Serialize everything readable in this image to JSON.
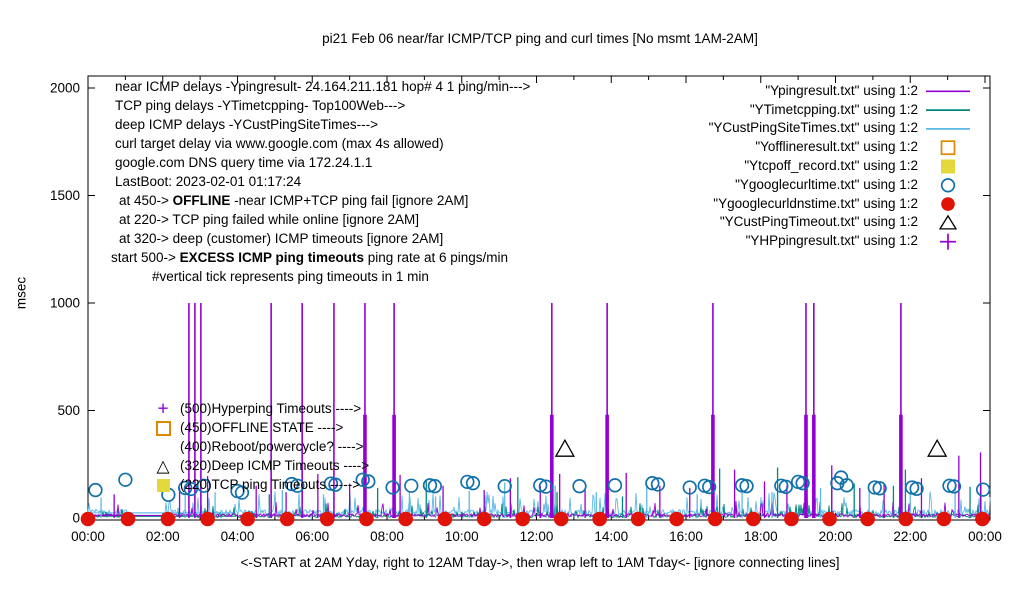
{
  "title": "pi21 Feb 06  near/far ICMP/TCP ping and curl times [No msmt 1AM-2AM]",
  "y_axis": {
    "label": "msec",
    "ticks": [
      0,
      500,
      1000,
      1500,
      2000
    ]
  },
  "x_axis": {
    "caption": "<-START at 2AM Yday, right to 12AM Tday->, then wrap left to 1AM Tday<- [ignore connecting lines]",
    "tick_labels": [
      "00:00",
      "02:00",
      "04:00",
      "06:00",
      "08:00",
      "10:00",
      "12:00",
      "14:00",
      "16:00",
      "18:00",
      "20:00",
      "22:00",
      "00:00"
    ]
  },
  "info_block": {
    "lines": [
      {
        "pre": "near ICMP delays -Ypingresult- 24.164.211.181 hop# 4 1 ping/min--->",
        "bold": "",
        "post": ""
      },
      {
        "pre": "TCP ping delays -YTimetcpping- Top100Web--->",
        "bold": "",
        "post": ""
      },
      {
        "pre": "deep ICMP delays -YCustPingSiteTimes--->",
        "bold": "",
        "post": ""
      },
      {
        "pre": "curl target delay via www.google.com (max 4s allowed)",
        "bold": "",
        "post": ""
      },
      {
        "pre": "google.com DNS query time via 172.24.1.1",
        "bold": "",
        "post": ""
      },
      {
        "pre": "LastBoot: 2023-02-01 01:17:24",
        "bold": "",
        "post": ""
      },
      {
        "pre": "at 450->  ",
        "bold": "OFFLINE",
        "post": "  -near ICMP+TCP ping fail [ignore 2AM]"
      },
      {
        "pre": "at 220-> TCP ping failed while online [ignore 2AM]",
        "bold": "",
        "post": ""
      },
      {
        "pre": "at 320-> deep (customer) ICMP timeouts [ignore 2AM]",
        "bold": "",
        "post": ""
      },
      {
        "pre": "start 500->  ",
        "bold": "EXCESS ICMP ping timeouts",
        "post": "  ping rate at 6 pings/min"
      },
      {
        "pre": "#vertical tick represents ping timeouts in 1 min",
        "bold": "",
        "post": ""
      }
    ]
  },
  "annotations": [
    {
      "text": "(500)Hyperping Timeouts ---->",
      "icon": "plus",
      "color": "#9400d3"
    },
    {
      "text": "(450)OFFLINE STATE ---->",
      "icon": "square-open",
      "color": "#e08700"
    },
    {
      "text": "(400)Reboot/powercycle? ---->",
      "icon": "none",
      "color": ""
    },
    {
      "text": "(320)Deep ICMP Timeouts ---->",
      "icon": "triangle-open",
      "color": "#000000"
    },
    {
      "text": "(220)TCP ping Timeouts ----->",
      "icon": "square-filled",
      "color": "#e3d93d"
    }
  ],
  "legend": {
    "entries": [
      {
        "label": "\"Ypingresult.txt\" using 1:2",
        "marker": "line",
        "color": "#9400d3"
      },
      {
        "label": "\"YTimetcpping.txt\" using 1:2",
        "marker": "line",
        "color": "#00887a"
      },
      {
        "label": "\"YCustPingSiteTimes.txt\" using 1:2",
        "marker": "line",
        "color": "#5cb8e6"
      },
      {
        "label": "\"Yofflineresult.txt\" using 1:2",
        "marker": "square-open",
        "color": "#e08700"
      },
      {
        "label": "\"Ytcpoff_record.txt\" using 1:2",
        "marker": "square-filled",
        "color": "#e3d93d"
      },
      {
        "label": "\"Ygooglecurltime.txt\" using 1:2",
        "marker": "circle-open",
        "color": "#1170aa"
      },
      {
        "label": "\"Ygooglecurldnstime.txt\" using 1:2",
        "marker": "circle-filled",
        "color": "#e01309"
      },
      {
        "label": "\"YCustPingTimeout.txt\" using 1:2",
        "marker": "triangle-open",
        "color": "#000000"
      },
      {
        "label": "\"YHPpingresult.txt\" using 1:2",
        "marker": "plus",
        "color": "#9400d3"
      }
    ]
  },
  "chart_data": {
    "type": "line",
    "title": "pi21 Feb 06  near/far ICMP/TCP ping and curl times [No msmt 1AM-2AM]",
    "xlabel": "<-START at 2AM Yday, right to 12AM Tday->, then wrap left to 1AM Tday<- [ignore connecting lines]",
    "ylabel": "msec",
    "ylim": [
      0,
      2070
    ],
    "xlim_hours": [
      0,
      24.15
    ],
    "x_tick_hours": [
      0,
      2,
      4,
      6,
      8,
      10,
      12,
      14,
      16,
      18,
      20,
      22,
      24
    ],
    "y_ticks": [
      0,
      500,
      1000,
      1500,
      2000
    ],
    "grid": false,
    "legend_position": "top-right",
    "no_measurement_gap_hours": [
      1.03,
      2.07
    ],
    "series": [
      {
        "name": "Ypingresult",
        "color": "#9400d3",
        "style": "line",
        "noise": {
          "base": 6,
          "jitter": 14,
          "spike_prob": 0.05,
          "spike_amp": 70,
          "gap_flat": 12,
          "seed": 11
        },
        "flat_connector": {
          "from_hour": 0,
          "to_hour": 1.95,
          "msec": 12
        },
        "timeout_spike_msec": 1000,
        "timeout_spike_hours": [
          2.7,
          2.86,
          3.02,
          4.9,
          5.73,
          6.58,
          7.41,
          8.19,
          12.41,
          13.89,
          16.72,
          19.21,
          19.42,
          21.75
        ],
        "medium_spikes": [
          [
            0.7,
            110
          ],
          [
            2.45,
            140
          ],
          [
            3.2,
            195
          ],
          [
            4.5,
            150
          ],
          [
            5.3,
            120
          ],
          [
            6.15,
            205
          ],
          [
            7.0,
            160
          ],
          [
            8.35,
            200
          ],
          [
            9.5,
            150
          ],
          [
            10.6,
            130
          ],
          [
            11.3,
            185
          ],
          [
            12.1,
            150
          ],
          [
            12.62,
            205
          ],
          [
            13.3,
            130
          ],
          [
            14.4,
            210
          ],
          [
            15.3,
            150
          ],
          [
            16.1,
            140
          ],
          [
            17.3,
            225
          ],
          [
            18.1,
            170
          ],
          [
            18.7,
            150
          ],
          [
            19.9,
            245
          ],
          [
            20.65,
            140
          ],
          [
            21.3,
            160
          ],
          [
            22.3,
            185
          ],
          [
            23.3,
            290
          ],
          [
            23.88,
            305
          ]
        ]
      },
      {
        "name": "YTimetcpping",
        "color": "#00887a",
        "style": "line",
        "noise": {
          "base": 2,
          "jitter": 16,
          "spike_prob": 0.1,
          "spike_amp": 60,
          "gap_flat": 8,
          "seed": 22
        },
        "flat_connector": {
          "from_hour": 0,
          "to_hour": 3.95,
          "msec": 8
        },
        "spikes": [
          [
            4.85,
            110
          ],
          [
            7.75,
            140
          ],
          [
            9.05,
            175
          ],
          [
            11.5,
            190
          ],
          [
            12.55,
            120
          ],
          [
            14.3,
            100
          ],
          [
            16.9,
            230
          ],
          [
            18.45,
            235
          ],
          [
            19.9,
            170
          ],
          [
            20.5,
            160
          ],
          [
            21.55,
            150
          ],
          [
            21.87,
            225
          ],
          [
            23.6,
            145
          ]
        ]
      },
      {
        "name": "YCustPingSiteTimes",
        "color": "#5cb8e6",
        "style": "line",
        "noise": {
          "base": 12,
          "jitter": 26,
          "spike_prob": 0.12,
          "spike_amp": 90,
          "gap_flat": 24,
          "seed": 33
        },
        "flat_connector": {
          "from_hour": 0,
          "to_hour": 3.85,
          "msec": 24
        },
        "spikes": [
          [
            0.35,
            95
          ],
          [
            2.6,
            110
          ],
          [
            3.4,
            120
          ],
          [
            5.2,
            130
          ],
          [
            6.3,
            110
          ],
          [
            8.6,
            120
          ],
          [
            9.3,
            100
          ],
          [
            10.2,
            125
          ],
          [
            11.15,
            165
          ],
          [
            12.5,
            150
          ],
          [
            13.6,
            120
          ],
          [
            14.95,
            160
          ],
          [
            16.3,
            110
          ],
          [
            17.5,
            130
          ],
          [
            18.3,
            120
          ],
          [
            19.6,
            140
          ],
          [
            20.9,
            130
          ],
          [
            22.0,
            120
          ],
          [
            23.2,
            150
          ],
          [
            23.9,
            160
          ]
        ]
      },
      {
        "name": "Yofflineresult",
        "color": "#e08700",
        "style": "square-open",
        "points": []
      },
      {
        "name": "Ytcpoff_record",
        "color": "#e3d93d",
        "style": "square-filled",
        "points": []
      },
      {
        "name": "Ygooglecurltime",
        "color": "#1170aa",
        "style": "circle-open",
        "points": [
          [
            0.2,
            130
          ],
          [
            1.0,
            178
          ],
          [
            2.15,
            108
          ],
          [
            2.6,
            140
          ],
          [
            2.75,
            135
          ],
          [
            3.1,
            150
          ],
          [
            4.0,
            125
          ],
          [
            4.12,
            118
          ],
          [
            5.45,
            158
          ],
          [
            5.6,
            150
          ],
          [
            6.5,
            160
          ],
          [
            6.62,
            155
          ],
          [
            7.35,
            178
          ],
          [
            7.5,
            170
          ],
          [
            8.15,
            142
          ],
          [
            8.65,
            150
          ],
          [
            9.15,
            152
          ],
          [
            9.28,
            148
          ],
          [
            10.15,
            168
          ],
          [
            10.3,
            162
          ],
          [
            11.15,
            148
          ],
          [
            12.1,
            152
          ],
          [
            12.25,
            146
          ],
          [
            13.15,
            148
          ],
          [
            14.1,
            152
          ],
          [
            15.1,
            162
          ],
          [
            15.25,
            156
          ],
          [
            16.1,
            142
          ],
          [
            16.5,
            150
          ],
          [
            16.62,
            144
          ],
          [
            17.5,
            152
          ],
          [
            17.62,
            148
          ],
          [
            18.55,
            150
          ],
          [
            18.67,
            145
          ],
          [
            19.0,
            168
          ],
          [
            19.12,
            162
          ],
          [
            20.05,
            162
          ],
          [
            20.15,
            188
          ],
          [
            20.3,
            152
          ],
          [
            21.05,
            142
          ],
          [
            21.18,
            138
          ],
          [
            22.05,
            142
          ],
          [
            22.17,
            136
          ],
          [
            23.05,
            150
          ],
          [
            23.17,
            147
          ],
          [
            23.95,
            132
          ]
        ]
      },
      {
        "name": "Ygooglecurldnstime",
        "color": "#e01309",
        "style": "circle-filled",
        "points_msec": 5,
        "point_hours": [
          0,
          1.07,
          2.14,
          3.2,
          4.27,
          5.33,
          6.4,
          7.45,
          8.5,
          9.55,
          10.6,
          11.63,
          12.66,
          13.69,
          14.72,
          15.75,
          16.78,
          17.8,
          18.82,
          19.84,
          20.86,
          21.88,
          22.9,
          23.93
        ]
      },
      {
        "name": "YCustPingTimeout",
        "color": "#000000",
        "style": "triangle-open",
        "points": [
          [
            12.76,
            320
          ],
          [
            22.72,
            320
          ]
        ]
      },
      {
        "name": "YHPpingresult",
        "color": "#9400d3",
        "style": "plus-column",
        "columns_top_msec": 480,
        "column_hours": [
          7.41,
          8.19,
          12.41,
          13.89,
          16.72,
          19.21,
          19.42,
          21.75
        ]
      }
    ]
  }
}
